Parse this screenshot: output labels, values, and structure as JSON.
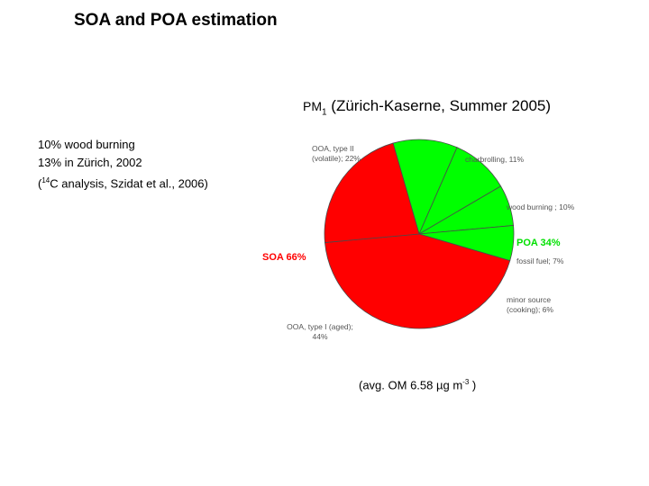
{
  "slide": {
    "title": "SOA and POA estimation",
    "subtitle_prefix": "PM",
    "subtitle_sub": "1",
    "subtitle_rest": " (Zürich-Kaserne, Summer 2005)",
    "notes": {
      "line1": "10% wood burning",
      "line2": "13% in Zürich, 2002",
      "line3_prefix": " (",
      "line3_sup": "14",
      "line3_rest": "C analysis, Szidat et al., 2006)"
    },
    "avg_prefix": "(avg. OM 6.58 ",
    "avg_mu": "µ",
    "avg_unit": "g m",
    "avg_sup": "-3",
    "avg_suffix": " )"
  },
  "chart_data": {
    "type": "pie",
    "title": "",
    "slices": [
      {
        "line1": "charbrolling, 11%",
        "line2": "",
        "value": 11,
        "color": "#00ff00"
      },
      {
        "line1": "wood burning ; 10%",
        "line2": "",
        "value": 10,
        "color": "#00ff00"
      },
      {
        "line1": "fossil fuel; 7%",
        "line2": "",
        "value": 7,
        "color": "#00ff00"
      },
      {
        "line1": "minor source",
        "line2": "(cooking); 6%",
        "value": 6,
        "color": "#00ff00"
      },
      {
        "line1": "OOA, type I (aged);",
        "line2": "44%",
        "value": 44,
        "color": "#ff0000"
      },
      {
        "line1": "OOA, type II",
        "line2": "(volatile); 22%",
        "value": 22,
        "color": "#ff0000"
      }
    ],
    "groups": [
      {
        "label": "POA 34%",
        "value": 34,
        "color": "#00e000"
      },
      {
        "label": "SOA 66%",
        "value": 66,
        "color": "#ff0000"
      }
    ]
  }
}
